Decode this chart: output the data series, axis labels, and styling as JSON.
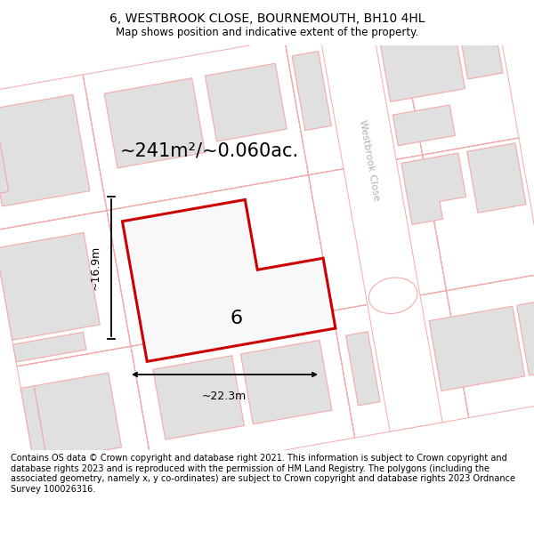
{
  "title": "6, WESTBROOK CLOSE, BOURNEMOUTH, BH10 4HL",
  "subtitle": "Map shows position and indicative extent of the property.",
  "footer": "Contains OS data © Crown copyright and database right 2021. This information is subject to Crown copyright and database rights 2023 and is reproduced with the permission of HM Land Registry. The polygons (including the associated geometry, namely x, y co-ordinates) are subject to Crown copyright and database rights 2023 Ordnance Survey 100026316.",
  "area_label": "~241m²/~0.060ac.",
  "width_label": "~22.3m",
  "height_label": "~16.9m",
  "number_label": "6",
  "bg_color": "#ffffff",
  "map_bg": "#f2f2f2",
  "building_fill": "#e0e0e0",
  "building_outline": "#f5aaaa",
  "highlight_fill": "#f8f8f8",
  "highlight_outline": "#cc0000",
  "road_color": "#f5aaaa",
  "street_label": "Westbrook Close",
  "title_fontsize": 10,
  "subtitle_fontsize": 8.5,
  "footer_fontsize": 7.0,
  "area_fontsize": 15,
  "number_fontsize": 16,
  "dim_fontsize": 9,
  "street_fontsize": 8
}
